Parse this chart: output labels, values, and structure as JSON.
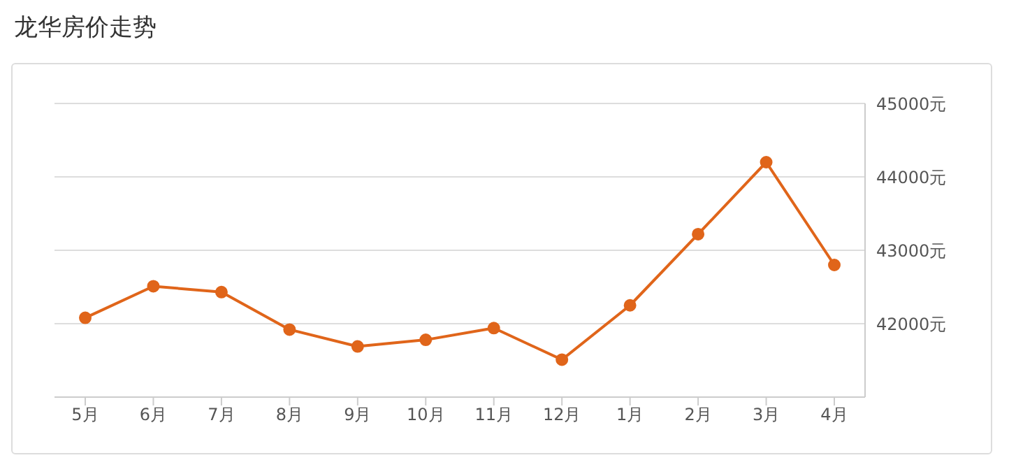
{
  "chart_data": {
    "type": "line",
    "title": "龙华房价走势",
    "categories": [
      "5月",
      "6月",
      "7月",
      "8月",
      "9月",
      "10月",
      "11月",
      "12月",
      "1月",
      "2月",
      "3月",
      "4月"
    ],
    "series": [
      {
        "color": "#e0651a",
        "values": [
          42080,
          42510,
          42430,
          41920,
          41690,
          41780,
          41940,
          41510,
          42250,
          43220,
          44200,
          42800
        ]
      }
    ],
    "ylim": [
      41000,
      45000
    ],
    "yticks": [
      {
        "value": 42000,
        "label": "42000元"
      },
      {
        "value": 43000,
        "label": "43000元"
      },
      {
        "value": 44000,
        "label": "44000元"
      },
      {
        "value": 45000,
        "label": "45000元"
      }
    ],
    "grid": "y",
    "marker": "circle",
    "line_style": "solid",
    "legend": false
  }
}
